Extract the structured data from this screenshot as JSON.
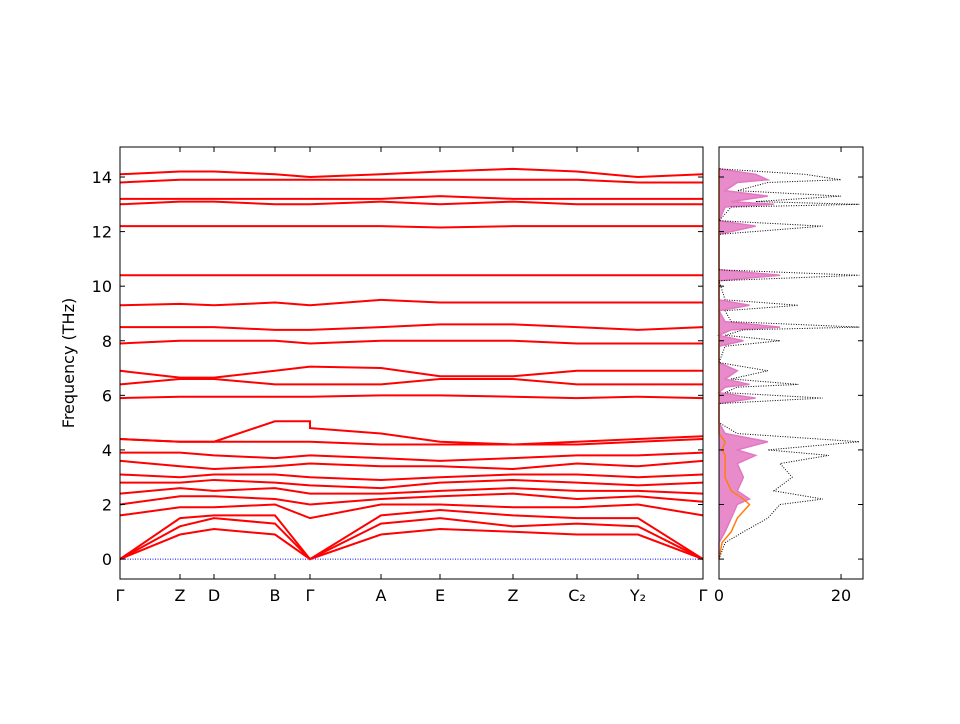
{
  "chart_data": [
    {
      "type": "line",
      "ylabel": "Frequency (THz)",
      "color": "#ff0000",
      "xlim": [
        0,
        5.83
      ],
      "ylim": [
        -0.73,
        15.1
      ],
      "xticks": [
        {
          "value": 0,
          "label": "Γ"
        },
        {
          "value": 0.6,
          "label": "Z"
        },
        {
          "value": 0.94,
          "label": "D"
        },
        {
          "value": 1.55,
          "label": "B"
        },
        {
          "value": 1.9,
          "label": "Γ"
        },
        {
          "value": 2.61,
          "label": "A"
        },
        {
          "value": 3.2,
          "label": "E"
        },
        {
          "value": 3.93,
          "label": "Z"
        },
        {
          "value": 4.57,
          "label": "C₂"
        },
        {
          "value": 5.18,
          "label": "Y₂"
        },
        {
          "value": 5.83,
          "label": "Γ"
        }
      ],
      "yticks": [
        0,
        2,
        4,
        6,
        8,
        10,
        12,
        14
      ],
      "zero_line": {
        "value": 0,
        "color": "#0000ff"
      },
      "x": [
        0,
        0.6,
        0.94,
        1.55,
        1.9,
        1.9,
        2.61,
        3.2,
        3.93,
        4.57,
        5.18,
        5.83
      ],
      "bands": [
        [
          0,
          0.9,
          1.1,
          0.9,
          0,
          0,
          0.9,
          1.1,
          1.0,
          0.9,
          0.9,
          0
        ],
        [
          0,
          1.2,
          1.5,
          1.3,
          0,
          0,
          1.3,
          1.5,
          1.2,
          1.3,
          1.2,
          0
        ],
        [
          0,
          1.5,
          1.6,
          1.6,
          0,
          0,
          1.6,
          1.8,
          1.6,
          1.5,
          1.5,
          0
        ],
        [
          1.6,
          1.9,
          1.9,
          2.0,
          1.5,
          1.5,
          2.0,
          2.0,
          1.9,
          1.9,
          2.0,
          1.6
        ],
        [
          2.0,
          2.3,
          2.3,
          2.2,
          2.0,
          2.0,
          2.2,
          2.3,
          2.4,
          2.2,
          2.3,
          2.1
        ],
        [
          2.4,
          2.6,
          2.5,
          2.6,
          2.4,
          2.4,
          2.4,
          2.5,
          2.6,
          2.5,
          2.5,
          2.4
        ],
        [
          2.8,
          2.8,
          2.9,
          2.8,
          2.7,
          2.7,
          2.6,
          2.8,
          2.9,
          2.8,
          2.7,
          2.8
        ],
        [
          3.1,
          3.0,
          3.1,
          3.1,
          3.0,
          3.0,
          2.9,
          3.0,
          3.1,
          3.1,
          3.0,
          3.1
        ],
        [
          3.6,
          3.4,
          3.3,
          3.4,
          3.5,
          3.5,
          3.4,
          3.4,
          3.3,
          3.5,
          3.4,
          3.6
        ],
        [
          3.9,
          3.9,
          3.8,
          3.7,
          3.8,
          3.8,
          3.7,
          3.6,
          3.7,
          3.8,
          3.8,
          3.9
        ],
        [
          4.4,
          4.3,
          4.3,
          4.3,
          4.3,
          4.3,
          4.2,
          4.2,
          4.2,
          4.2,
          4.3,
          4.4
        ],
        [
          4.4,
          4.3,
          4.3,
          5.05,
          5.05,
          4.8,
          4.6,
          4.3,
          4.2,
          4.3,
          4.4,
          4.5
        ],
        [
          5.9,
          5.95,
          5.95,
          5.95,
          5.95,
          5.95,
          6.0,
          6.0,
          5.95,
          5.9,
          5.95,
          5.9
        ],
        [
          6.4,
          6.6,
          6.6,
          6.4,
          6.4,
          6.4,
          6.4,
          6.6,
          6.6,
          6.4,
          6.4,
          6.4
        ],
        [
          6.9,
          6.65,
          6.65,
          6.9,
          7.05,
          7.05,
          7.0,
          6.7,
          6.7,
          6.9,
          6.9,
          6.9
        ],
        [
          7.9,
          8.0,
          8.0,
          8.0,
          7.9,
          7.9,
          8.0,
          8.0,
          8.0,
          7.9,
          7.9,
          7.9
        ],
        [
          8.5,
          8.5,
          8.5,
          8.4,
          8.4,
          8.4,
          8.5,
          8.6,
          8.6,
          8.5,
          8.4,
          8.5
        ],
        [
          9.3,
          9.35,
          9.3,
          9.4,
          9.3,
          9.3,
          9.5,
          9.4,
          9.4,
          9.4,
          9.4,
          9.4
        ],
        [
          10.4,
          10.4,
          10.4,
          10.4,
          10.4,
          10.4,
          10.4,
          10.4,
          10.4,
          10.4,
          10.4,
          10.4
        ],
        [
          12.2,
          12.2,
          12.2,
          12.2,
          12.2,
          12.2,
          12.2,
          12.15,
          12.2,
          12.2,
          12.2,
          12.2
        ],
        [
          13.0,
          13.1,
          13.1,
          13.0,
          13.0,
          13.0,
          13.1,
          13.0,
          13.1,
          13.0,
          13.0,
          13.0
        ],
        [
          13.2,
          13.2,
          13.2,
          13.2,
          13.2,
          13.2,
          13.2,
          13.3,
          13.2,
          13.2,
          13.2,
          13.2
        ],
        [
          13.8,
          13.9,
          13.9,
          13.9,
          13.9,
          13.9,
          13.9,
          13.9,
          13.9,
          13.9,
          13.8,
          13.8
        ],
        [
          14.1,
          14.2,
          14.2,
          14.1,
          14.0,
          14.0,
          14.1,
          14.2,
          14.3,
          14.2,
          14.0,
          14.1
        ]
      ]
    },
    {
      "type": "area",
      "orientation": "horizontal",
      "xlim": [
        0,
        23.6
      ],
      "xticks": [
        0,
        20
      ],
      "x": [
        0,
        0.6,
        1.0,
        1.5,
        2.0,
        2.2,
        2.5,
        3.0,
        3.5,
        3.8,
        4.0,
        4.3,
        4.6,
        5.0,
        5.7,
        5.9,
        6.1,
        6.3,
        6.4,
        6.6,
        6.9,
        7.2,
        7.8,
        8.0,
        8.2,
        8.4,
        8.5,
        8.7,
        9.1,
        9.3,
        9.5,
        10.2,
        10.4,
        10.6,
        11.9,
        12.2,
        12.4,
        12.9,
        13.0,
        13.1,
        13.3,
        13.5,
        13.8,
        13.9,
        14.1,
        14.3
      ],
      "series": [
        {
          "color": "#e377c2",
          "fill": true,
          "values": [
            0,
            0,
            1,
            2,
            3,
            5,
            3,
            4,
            3,
            6,
            3,
            8,
            1,
            0,
            0,
            6,
            0,
            1,
            5,
            1,
            3,
            0,
            0,
            4,
            0,
            2,
            10,
            1,
            0,
            5,
            0,
            0,
            10,
            0,
            0,
            6,
            0,
            1,
            9,
            2,
            8,
            1,
            3,
            8,
            6,
            0
          ]
        },
        {
          "color": "#ff7f0e",
          "fill": false,
          "values": [
            0,
            0.5,
            2,
            3,
            5,
            4,
            2,
            1,
            1,
            1,
            0.5,
            1,
            0,
            0,
            0,
            0,
            0,
            0,
            0,
            0,
            0,
            0,
            0,
            0,
            0,
            0,
            0,
            0,
            0,
            0,
            0,
            0,
            0,
            0,
            0,
            0,
            0,
            0,
            0,
            0,
            0,
            0,
            0,
            0,
            0,
            0
          ]
        },
        {
          "color": "#000000",
          "fill": false,
          "dotted": true,
          "values": [
            0,
            1,
            4,
            8,
            10,
            17,
            9,
            12,
            10,
            18,
            8,
            23,
            3,
            0,
            0,
            17,
            1,
            3,
            13,
            2,
            8,
            0,
            1,
            10,
            1,
            4,
            23,
            2,
            1,
            13,
            1,
            0,
            23,
            0,
            0,
            17,
            0,
            2,
            23,
            6,
            20,
            3,
            8,
            20,
            14,
            0
          ]
        }
      ]
    }
  ]
}
